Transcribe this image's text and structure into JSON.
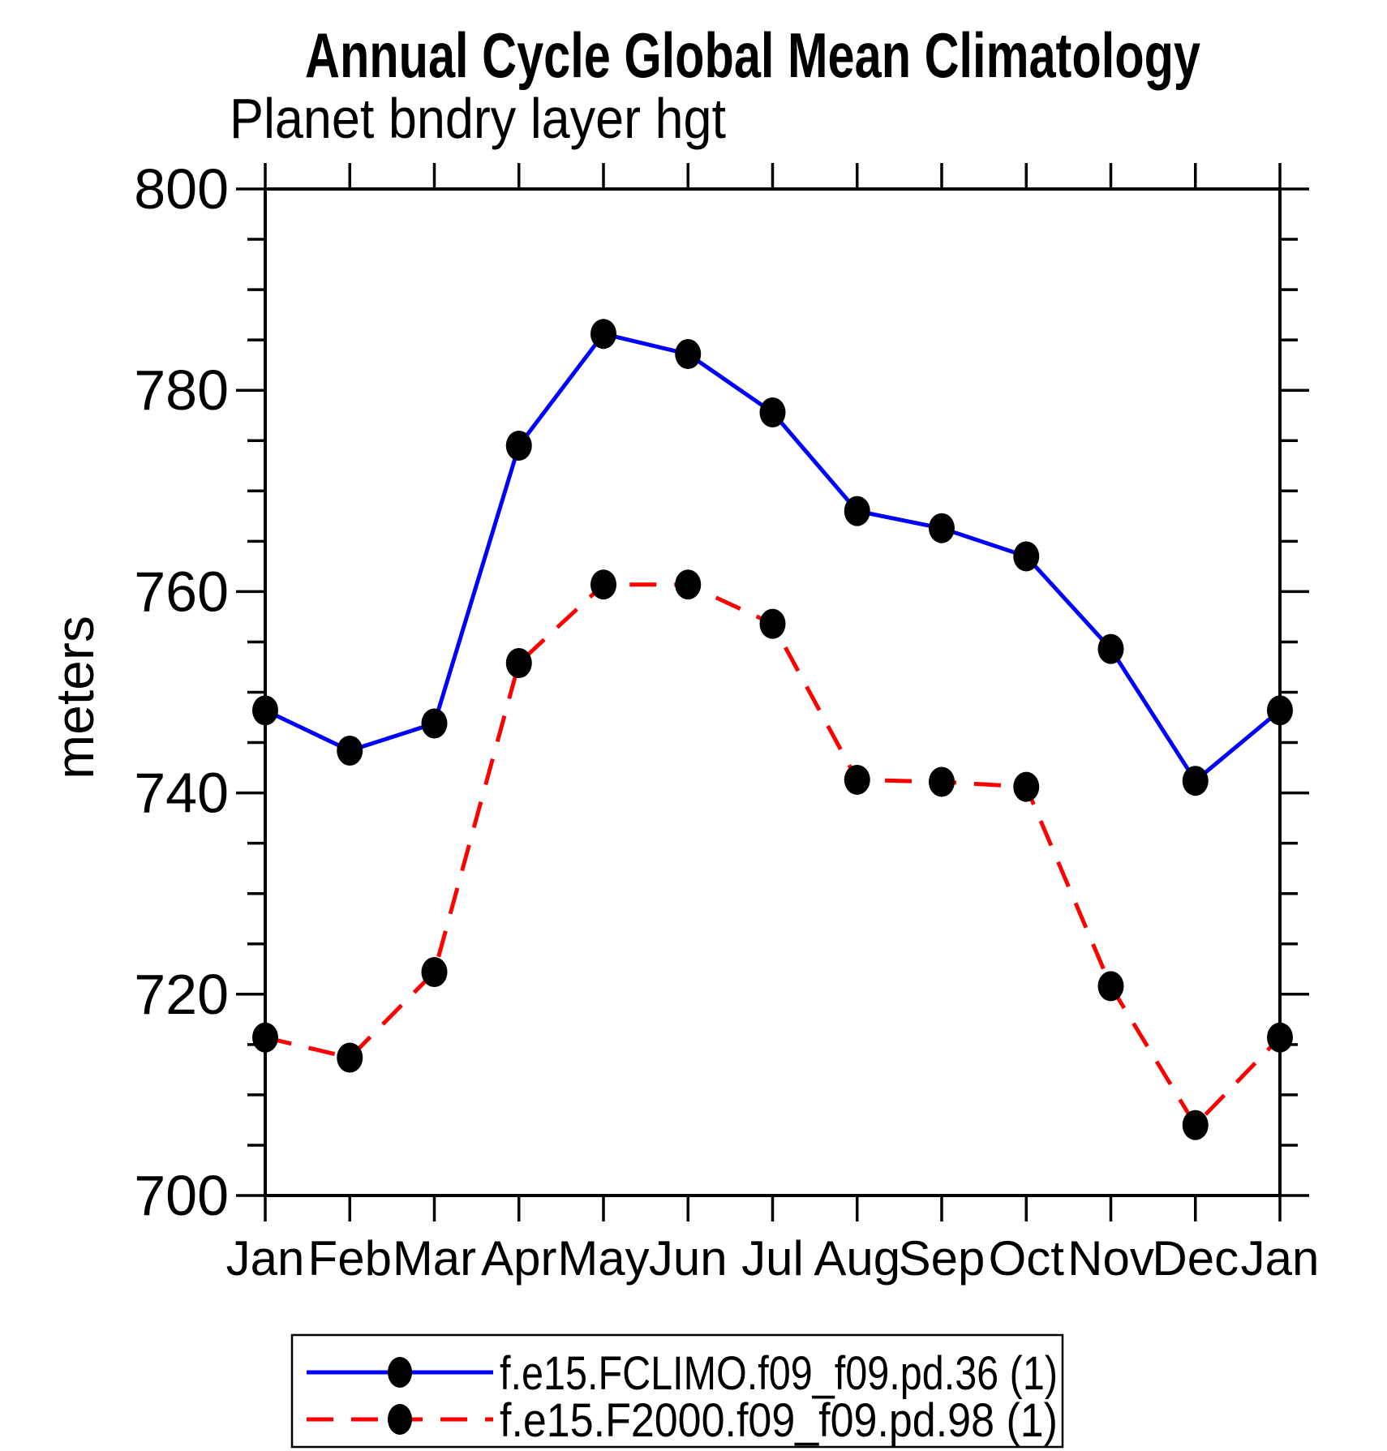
{
  "chart_data": {
    "type": "line",
    "title": "Annual Cycle Global Mean Climatology",
    "subtitle": "Planet bndry layer hgt",
    "ylabel": "meters",
    "x_categories": [
      "Jan",
      "Feb",
      "Mar",
      "Apr",
      "May",
      "Jun",
      "Jul",
      "Aug",
      "Sep",
      "Oct",
      "Nov",
      "Dec",
      "Jan"
    ],
    "ylim": [
      700,
      800
    ],
    "y_major_ticks": [
      700,
      720,
      740,
      760,
      780,
      800
    ],
    "y_minor_step": 5,
    "grid": false,
    "legend_position": "bottom",
    "axis_color": "#000000",
    "marker_color": "#000000",
    "series": [
      {
        "name": "f.e15.FCLIMO.f09_f09.pd.36 (1)",
        "color": "#0000ff",
        "style": "solid",
        "marker": "filled-circle",
        "values": [
          748.2,
          744.2,
          746.9,
          774.5,
          785.6,
          783.6,
          777.8,
          768.0,
          766.3,
          763.5,
          754.3,
          741.2,
          748.2
        ]
      },
      {
        "name": "f.e15.F2000.f09_f09.pd.98 (1)",
        "color": "#ff0000",
        "style": "dashed",
        "marker": "filled-circle",
        "values": [
          715.7,
          713.7,
          722.2,
          752.9,
          760.7,
          760.7,
          756.8,
          741.3,
          741.1,
          740.6,
          720.8,
          707.0,
          715.7
        ]
      }
    ]
  }
}
